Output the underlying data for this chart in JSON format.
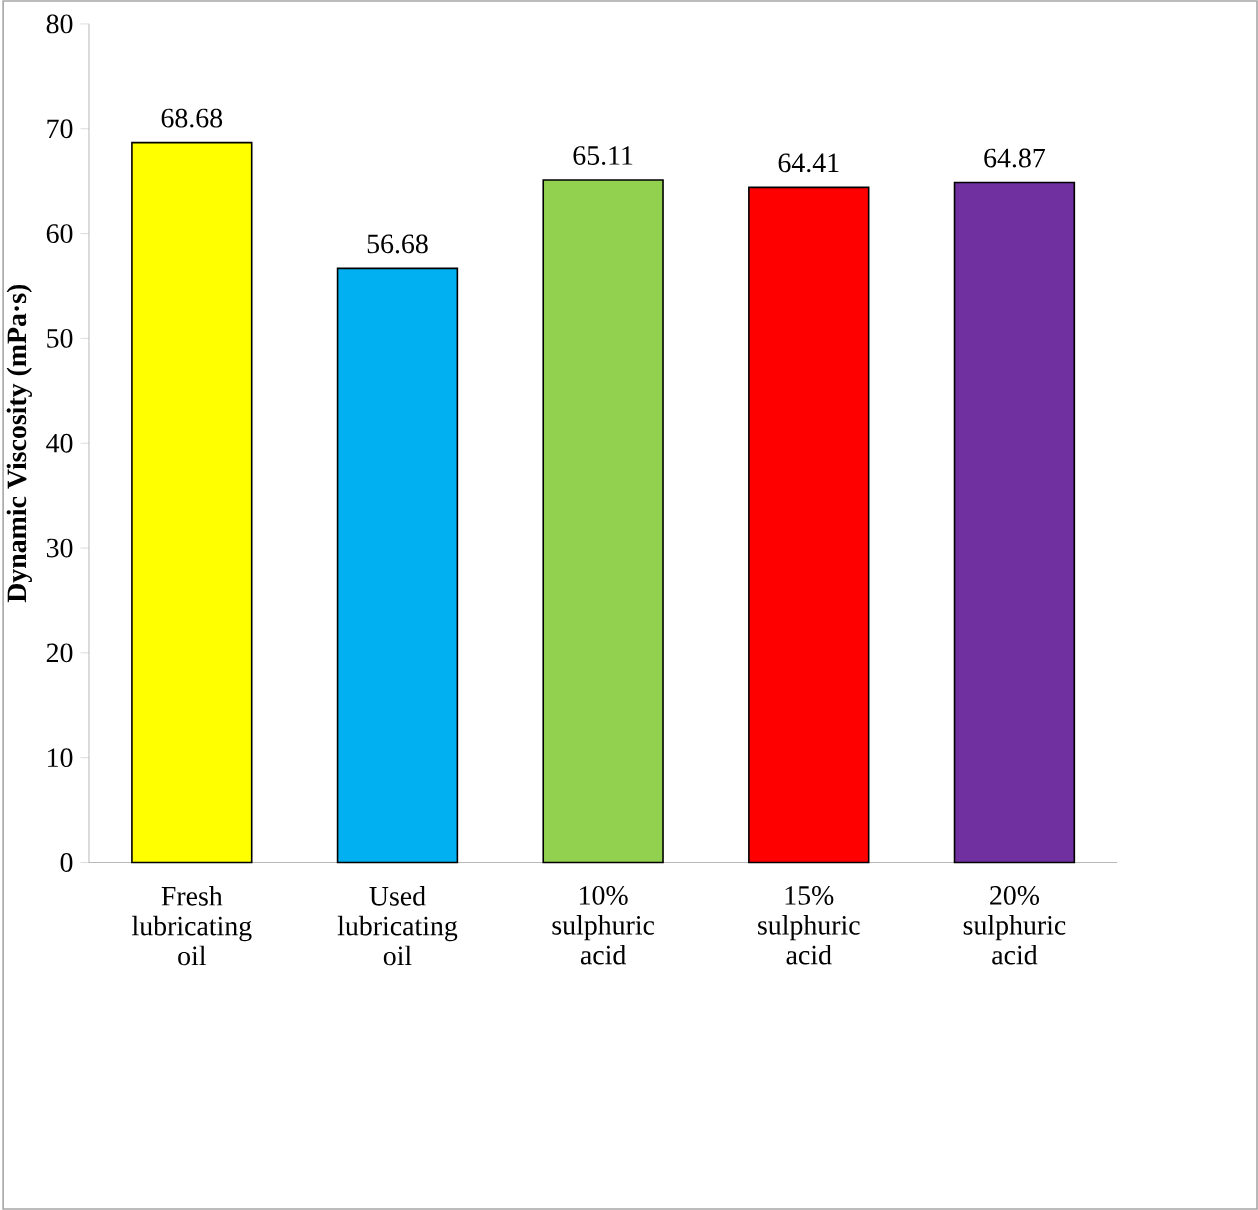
{
  "chart_data": {
    "type": "bar",
    "ylabel": "Dynamic Viscosity (mPa·s)",
    "categories": [
      "Fresh lubricating oil",
      "Used lubricating oil",
      "10% sulphuric acid",
      "15% sulphuric acid",
      "20% sulphuric acid"
    ],
    "values": [
      68.68,
      56.68,
      65.11,
      64.41,
      64.87
    ],
    "colors": [
      "#ffff00",
      "#00b0f0",
      "#92d050",
      "#ff0000",
      "#7030a0"
    ],
    "ylim": [
      0,
      80
    ],
    "yticks": [
      0,
      10,
      20,
      30,
      40,
      50,
      60,
      70,
      80
    ],
    "data_labels": true
  }
}
